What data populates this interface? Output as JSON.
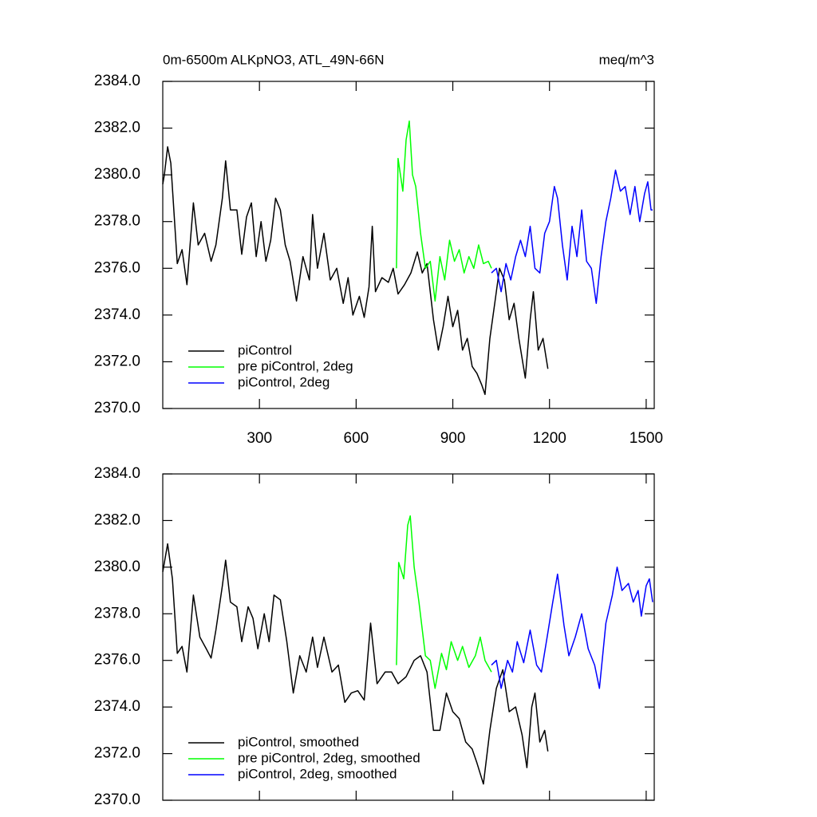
{
  "chart_data": [
    {
      "type": "line",
      "title": "0m-6500m ALKpNO3, ATL_49N-66N",
      "units": "meq/m^3",
      "xlim": [
        0,
        1525
      ],
      "ylim": [
        2370,
        2384
      ],
      "xticks": [
        300,
        600,
        900,
        1200,
        1500
      ],
      "show_xtick_labels": true,
      "yticks": [
        {
          "value": 2370,
          "label": "2370.0"
        },
        {
          "value": 2372,
          "label": "2372.0"
        },
        {
          "value": 2374,
          "label": "2374.0"
        },
        {
          "value": 2376,
          "label": "2376.0"
        },
        {
          "value": 2378,
          "label": "2378.0"
        },
        {
          "value": 2380,
          "label": "2380.0"
        },
        {
          "value": 2382,
          "label": "2382.0"
        },
        {
          "value": 2384,
          "label": "2384.0"
        }
      ],
      "legend_position": "lower left",
      "series": [
        {
          "name": "piControl",
          "color": "#000000",
          "x": [
            0,
            5,
            15,
            25,
            45,
            60,
            75,
            95,
            110,
            130,
            150,
            165,
            185,
            195,
            210,
            230,
            245,
            260,
            275,
            290,
            305,
            320,
            335,
            350,
            365,
            380,
            395,
            415,
            435,
            455,
            465,
            480,
            500,
            520,
            540,
            560,
            575,
            590,
            610,
            625,
            640,
            650,
            660,
            680,
            700,
            715,
            730,
            750,
            770,
            790,
            805,
            820,
            840,
            855,
            870,
            885,
            900,
            915,
            930,
            945,
            960,
            975,
            990,
            1000,
            1015,
            1030,
            1045,
            1060,
            1075,
            1090,
            1105,
            1125,
            1140,
            1150,
            1165,
            1180,
            1195
          ],
          "values": [
            2379.6,
            2380.0,
            2381.2,
            2380.5,
            2376.2,
            2376.8,
            2375.3,
            2378.8,
            2377.0,
            2377.5,
            2376.3,
            2377.0,
            2379.0,
            2380.6,
            2378.5,
            2378.5,
            2376.6,
            2378.2,
            2378.8,
            2376.5,
            2378.0,
            2376.3,
            2377.2,
            2379.0,
            2378.5,
            2377.0,
            2376.3,
            2374.6,
            2376.5,
            2375.5,
            2378.3,
            2376.0,
            2377.5,
            2375.5,
            2376.0,
            2374.5,
            2375.6,
            2374.0,
            2374.8,
            2373.9,
            2375.2,
            2377.8,
            2375.0,
            2375.6,
            2375.4,
            2376.0,
            2374.9,
            2375.3,
            2375.8,
            2376.7,
            2375.8,
            2376.2,
            2373.8,
            2372.5,
            2373.5,
            2374.8,
            2373.5,
            2374.2,
            2372.5,
            2373.0,
            2371.8,
            2371.5,
            2371.0,
            2370.6,
            2373.0,
            2374.5,
            2376.0,
            2375.5,
            2373.8,
            2374.5,
            2373.0,
            2371.3,
            2373.8,
            2375.0,
            2372.5,
            2373.0,
            2371.7
          ]
        },
        {
          "name": "pre piControl, 2deg",
          "color": "#00ff00",
          "x": [
            725,
            730,
            745,
            755,
            765,
            775,
            785,
            800,
            815,
            830,
            845,
            860,
            875,
            890,
            905,
            920,
            935,
            950,
            965,
            980,
            995,
            1010,
            1020
          ],
          "values": [
            2376.0,
            2380.7,
            2379.3,
            2381.5,
            2382.3,
            2380.0,
            2379.5,
            2377.5,
            2376.0,
            2376.3,
            2374.6,
            2376.5,
            2375.5,
            2377.2,
            2376.3,
            2376.8,
            2375.8,
            2376.5,
            2376.0,
            2377.0,
            2376.2,
            2376.3,
            2376.0
          ]
        },
        {
          "name": "piControl, 2deg",
          "color": "#0000ff",
          "x": [
            1020,
            1035,
            1050,
            1065,
            1080,
            1095,
            1110,
            1125,
            1140,
            1155,
            1170,
            1185,
            1200,
            1215,
            1225,
            1240,
            1255,
            1270,
            1285,
            1300,
            1315,
            1330,
            1345,
            1360,
            1375,
            1390,
            1405,
            1420,
            1435,
            1450,
            1465,
            1480,
            1495,
            1505,
            1515,
            1520
          ],
          "values": [
            2375.8,
            2376.0,
            2375.0,
            2376.2,
            2375.5,
            2376.5,
            2377.2,
            2376.5,
            2377.8,
            2376.0,
            2375.8,
            2377.5,
            2378.0,
            2379.5,
            2379.0,
            2377.0,
            2375.5,
            2377.8,
            2376.5,
            2378.5,
            2376.3,
            2376.0,
            2374.5,
            2376.5,
            2378.0,
            2379.0,
            2380.2,
            2379.3,
            2379.5,
            2378.3,
            2379.5,
            2378.0,
            2379.2,
            2379.7,
            2378.5,
            2378.5
          ]
        }
      ]
    },
    {
      "type": "line",
      "xlim": [
        0,
        1525
      ],
      "ylim": [
        2370,
        2384
      ],
      "xticks": [
        300,
        600,
        900,
        1200,
        1500
      ],
      "show_xtick_labels": false,
      "yticks": [
        {
          "value": 2370,
          "label": "2370.0"
        },
        {
          "value": 2372,
          "label": "2372.0"
        },
        {
          "value": 2374,
          "label": "2374.0"
        },
        {
          "value": 2376,
          "label": "2376.0"
        },
        {
          "value": 2378,
          "label": "2378.0"
        },
        {
          "value": 2380,
          "label": "2380.0"
        },
        {
          "value": 2382,
          "label": "2382.0"
        },
        {
          "value": 2384,
          "label": "2384.0"
        }
      ],
      "legend_position": "lower left",
      "series": [
        {
          "name": "piControl, smoothed",
          "color": "#000000",
          "x": [
            0,
            15,
            30,
            45,
            60,
            75,
            95,
            115,
            135,
            150,
            165,
            185,
            195,
            210,
            230,
            245,
            265,
            280,
            295,
            315,
            330,
            345,
            365,
            385,
            405,
            425,
            445,
            465,
            480,
            500,
            525,
            545,
            565,
            585,
            605,
            625,
            645,
            665,
            690,
            710,
            730,
            755,
            780,
            800,
            820,
            840,
            860,
            880,
            900,
            920,
            940,
            960,
            975,
            995,
            1015,
            1035,
            1055,
            1075,
            1095,
            1115,
            1130,
            1145,
            1155,
            1170,
            1185,
            1195
          ],
          "values": [
            2379.8,
            2381.0,
            2379.5,
            2376.3,
            2376.6,
            2375.5,
            2378.8,
            2377.0,
            2376.5,
            2376.1,
            2377.3,
            2379.2,
            2380.3,
            2378.5,
            2378.3,
            2376.8,
            2378.3,
            2377.8,
            2376.5,
            2378.0,
            2376.8,
            2378.8,
            2378.6,
            2376.8,
            2374.6,
            2376.2,
            2375.5,
            2377.0,
            2375.7,
            2377.0,
            2375.5,
            2375.8,
            2374.2,
            2374.6,
            2374.7,
            2374.3,
            2377.6,
            2375.0,
            2375.5,
            2375.5,
            2375.0,
            2375.3,
            2376.0,
            2376.2,
            2375.5,
            2373.0,
            2373.0,
            2374.6,
            2373.8,
            2373.5,
            2372.5,
            2372.2,
            2371.6,
            2370.7,
            2373.0,
            2374.8,
            2375.6,
            2373.8,
            2374.0,
            2372.8,
            2371.4,
            2374.0,
            2374.6,
            2372.5,
            2373.0,
            2372.1
          ]
        },
        {
          "name": "pre piControl, 2deg, smoothed",
          "color": "#00ff00",
          "x": [
            725,
            732,
            748,
            760,
            768,
            780,
            795,
            815,
            830,
            845,
            865,
            880,
            895,
            915,
            930,
            950,
            970,
            985,
            1000,
            1020
          ],
          "values": [
            2375.8,
            2380.2,
            2379.5,
            2381.8,
            2382.2,
            2380.0,
            2378.5,
            2376.2,
            2376.0,
            2374.8,
            2376.3,
            2375.6,
            2376.8,
            2376.0,
            2376.6,
            2375.7,
            2376.2,
            2377.0,
            2376.0,
            2375.5
          ]
        },
        {
          "name": "piControl, 2deg, smoothed",
          "color": "#0000ff",
          "x": [
            1020,
            1035,
            1050,
            1070,
            1085,
            1100,
            1120,
            1140,
            1160,
            1175,
            1195,
            1210,
            1225,
            1245,
            1260,
            1280,
            1300,
            1320,
            1340,
            1355,
            1375,
            1395,
            1410,
            1425,
            1445,
            1460,
            1475,
            1485,
            1500,
            1510,
            1520
          ],
          "values": [
            2375.8,
            2376.0,
            2374.8,
            2376.0,
            2375.5,
            2376.8,
            2375.9,
            2377.3,
            2375.8,
            2375.5,
            2377.2,
            2378.5,
            2379.7,
            2377.5,
            2376.2,
            2377.0,
            2378.0,
            2376.5,
            2375.8,
            2374.8,
            2377.6,
            2378.8,
            2380.0,
            2379.0,
            2379.3,
            2378.5,
            2379.0,
            2377.9,
            2379.2,
            2379.5,
            2378.5
          ]
        }
      ]
    }
  ]
}
